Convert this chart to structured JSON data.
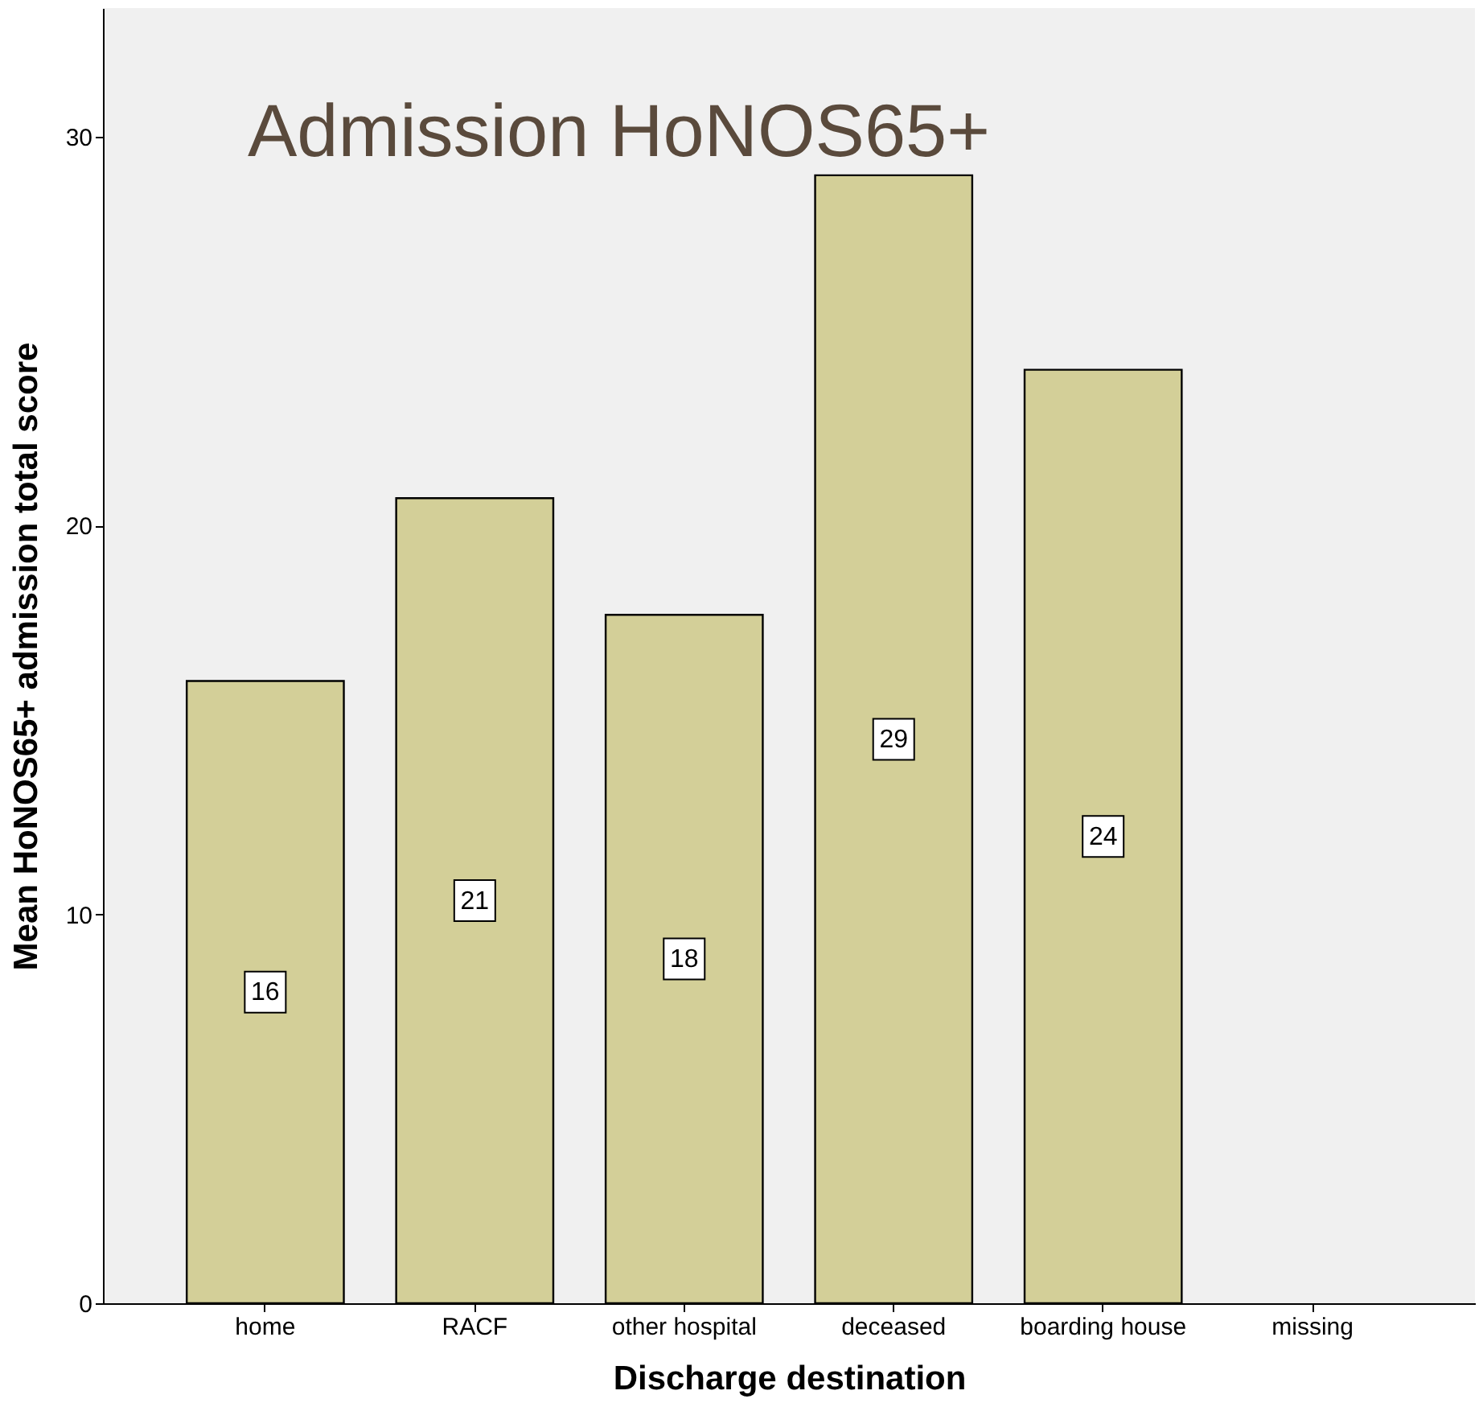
{
  "chart_data": {
    "type": "bar",
    "title": "Admission HoNOS65+",
    "xlabel": "Discharge destination",
    "ylabel": "Mean HoNOS65+ admission total score",
    "categories": [
      "home",
      "RACF",
      "other hospital",
      "deceased",
      "boarding house",
      "missing"
    ],
    "values": [
      16.0,
      20.7,
      17.7,
      29.0,
      24.0,
      null
    ],
    "value_labels": [
      "16",
      "21",
      "18",
      "29",
      "24",
      null
    ],
    "color": "#d3cf98",
    "ylim": [
      0,
      33.3
    ],
    "yticks": [
      0,
      10,
      20,
      30
    ],
    "grid": false
  }
}
